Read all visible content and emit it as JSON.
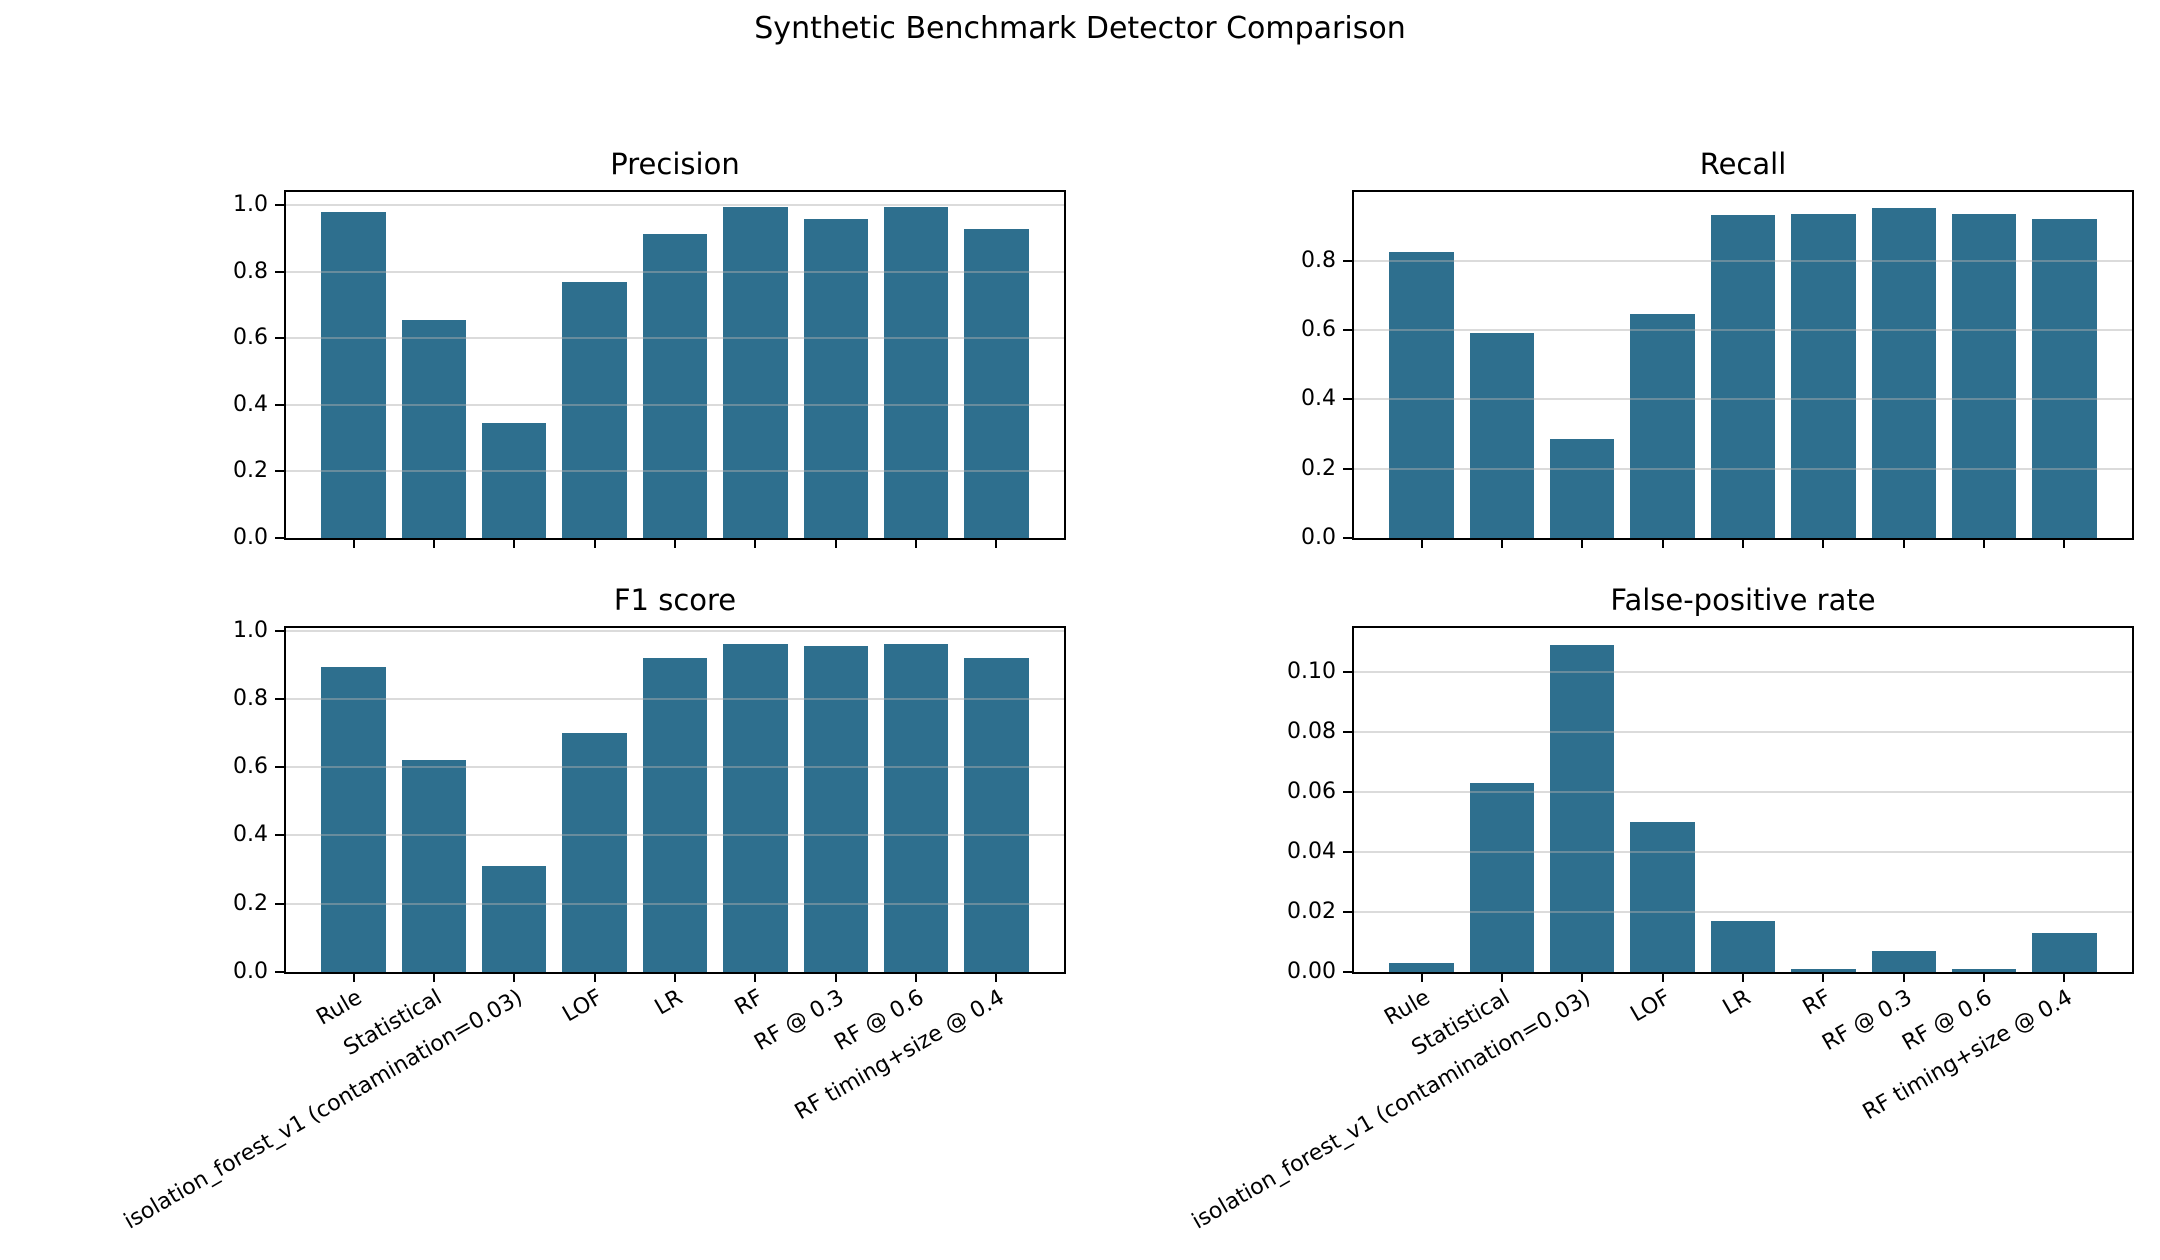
{
  "chart_data": {
    "type": "bar",
    "suptitle": "Synthetic Benchmark Detector Comparison",
    "bar_color": "#2e6f8e",
    "grid_color": "#b0b0b0",
    "background_color": "#ffffff",
    "layout": "2x2 grid of subplots, horizontal gridlines only, x tick labels rotated 30 degrees on bottom row only",
    "categories": [
      "Rule",
      "Statistical",
      "isolation_forest_v1 (contamination=0.03)",
      "LOF",
      "LR",
      "RF",
      "RF @ 0.3",
      "RF @ 0.6",
      "RF timing+size @ 0.4"
    ],
    "subplots": [
      {
        "title": "Precision",
        "values": [
          0.98,
          0.655,
          0.345,
          0.77,
          0.915,
          0.995,
          0.96,
          0.995,
          0.93
        ],
        "ylim": [
          0,
          1.04
        ],
        "show_xlabels": false,
        "yticks": [
          {
            "value": 0.0,
            "label": "0.0"
          },
          {
            "value": 0.2,
            "label": "0.2"
          },
          {
            "value": 0.4,
            "label": "0.4"
          },
          {
            "value": 0.6,
            "label": "0.6"
          },
          {
            "value": 0.8,
            "label": "0.8"
          },
          {
            "value": 1.0,
            "label": "1.0"
          }
        ]
      },
      {
        "title": "Recall",
        "values": [
          0.825,
          0.59,
          0.285,
          0.645,
          0.93,
          0.935,
          0.95,
          0.935,
          0.92
        ],
        "ylim": [
          0,
          0.9975
        ],
        "show_xlabels": false,
        "yticks": [
          {
            "value": 0.0,
            "label": "0.0"
          },
          {
            "value": 0.2,
            "label": "0.2"
          },
          {
            "value": 0.4,
            "label": "0.4"
          },
          {
            "value": 0.6,
            "label": "0.6"
          },
          {
            "value": 0.8,
            "label": "0.8"
          }
        ]
      },
      {
        "title": "F1 score",
        "values": [
          0.895,
          0.62,
          0.31,
          0.7,
          0.92,
          0.96,
          0.955,
          0.96,
          0.92
        ],
        "ylim": [
          0,
          1.008
        ],
        "show_xlabels": true,
        "yticks": [
          {
            "value": 0.0,
            "label": "0.0"
          },
          {
            "value": 0.2,
            "label": "0.2"
          },
          {
            "value": 0.4,
            "label": "0.4"
          },
          {
            "value": 0.6,
            "label": "0.6"
          },
          {
            "value": 0.8,
            "label": "0.8"
          },
          {
            "value": 1.0,
            "label": "1.0"
          }
        ]
      },
      {
        "title": "False-positive rate",
        "values": [
          0.003,
          0.063,
          0.109,
          0.05,
          0.017,
          0.001,
          0.007,
          0.001,
          0.013
        ],
        "ylim": [
          0,
          0.1145
        ],
        "show_xlabels": true,
        "yticks": [
          {
            "value": 0.0,
            "label": "0.00"
          },
          {
            "value": 0.02,
            "label": "0.02"
          },
          {
            "value": 0.04,
            "label": "0.04"
          },
          {
            "value": 0.06,
            "label": "0.06"
          },
          {
            "value": 0.08,
            "label": "0.08"
          },
          {
            "value": 0.1,
            "label": "0.10"
          }
        ]
      }
    ]
  }
}
